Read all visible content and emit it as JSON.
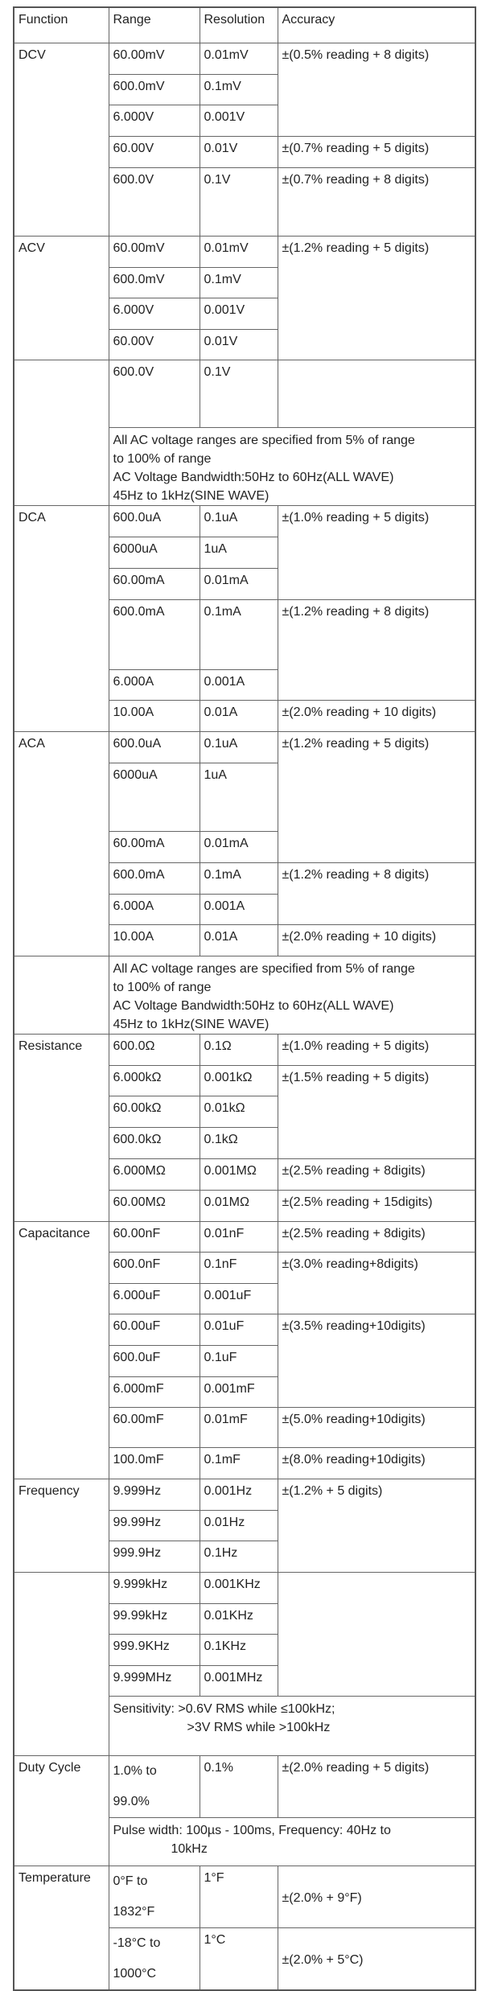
{
  "table": {
    "header": [
      "Function",
      "Range",
      "Resolution",
      "Accuracy"
    ],
    "rows": [
      [
        "DCV",
        "60.00mV",
        "0.01mV",
        "±(0.5% reading + 8 digits)"
      ],
      [
        "600.0mV",
        "0.1mV"
      ],
      [
        "6.000V",
        "0.001V"
      ],
      [
        "60.00V",
        "0.01V",
        "±(0.7% reading + 5 digits)"
      ],
      [
        "600.0V",
        "0.1V",
        "±(0.7% reading + 8 digits)"
      ],
      [
        "ACV",
        "60.00mV",
        "0.01mV",
        "±(1.2% reading + 5 digits)"
      ],
      [
        "600.0mV",
        "0.1mV"
      ],
      [
        "6.000V",
        "0.001V"
      ],
      [
        "60.00V",
        "0.01V"
      ],
      [
        "600.0V",
        "0.1V"
      ],
      [
        [
          "All AC voltage ranges are specified from 5% of range",
          "to 100% of range",
          "AC Voltage Bandwidth:50Hz to 60Hz(ALL WAVE)",
          "45Hz to 1kHz(SINE WAVE)"
        ]
      ],
      [
        "DCA",
        "600.0uA",
        "0.1uA",
        "±(1.0% reading + 5 digits)"
      ],
      [
        "6000uA",
        "1uA"
      ],
      [
        "60.00mA",
        "0.01mA"
      ],
      [
        "600.0mA",
        "0.1mA",
        "±(1.2% reading + 8 digits)"
      ],
      [
        "6.000A",
        "0.001A"
      ],
      [
        "10.00A",
        "0.01A",
        "±(2.0% reading + 10 digits)"
      ],
      [
        "ACA",
        "600.0uA",
        "0.1uA",
        "±(1.2% reading + 5 digits)"
      ],
      [
        "6000uA",
        "1uA"
      ],
      [
        "60.00mA",
        "0.01mA"
      ],
      [
        "600.0mA",
        "0.1mA",
        "±(1.2% reading + 8 digits)"
      ],
      [
        "6.000A",
        "0.001A"
      ],
      [
        "10.00A",
        "0.01A",
        "±(2.0% reading + 10 digits)"
      ],
      [
        [
          "All AC voltage ranges are specified from 5% of range",
          "to 100% of range",
          "AC Voltage Bandwidth:50Hz to 60Hz(ALL WAVE)",
          "45Hz to 1kHz(SINE WAVE)"
        ]
      ],
      [
        "Resistance",
        "600.0Ω",
        "0.1Ω",
        "±(1.0% reading + 5 digits)"
      ],
      [
        "6.000kΩ",
        "0.001kΩ",
        "±(1.5% reading + 5 digits)"
      ],
      [
        "60.00kΩ",
        "0.01kΩ"
      ],
      [
        "600.0kΩ",
        "0.1kΩ"
      ],
      [
        "6.000MΩ",
        "0.001MΩ",
        "±(2.5% reading + 8digits)"
      ],
      [
        "60.00MΩ",
        "0.01MΩ",
        "±(2.5% reading + 15digits)"
      ],
      [
        "Capacitance",
        "60.00nF",
        "0.01nF",
        "±(2.5% reading + 8digits)"
      ],
      [
        "600.0nF",
        "0.1nF",
        "±(3.0% reading+8digits)"
      ],
      [
        "6.000uF",
        "0.001uF"
      ],
      [
        "60.00uF",
        "0.01uF",
        "±(3.5% reading+10digits)"
      ],
      [
        "600.0uF",
        "0.1uF"
      ],
      [
        "6.000mF",
        "0.001mF"
      ],
      [
        "60.00mF",
        "0.01mF",
        "±(5.0% reading+10digits)"
      ],
      [
        "100.0mF",
        "0.1mF",
        "±(8.0% reading+10digits)"
      ],
      [
        "Frequency",
        "9.999Hz",
        "0.001Hz",
        "±(1.2% + 5 digits)"
      ],
      [
        "99.99Hz",
        "0.01Hz"
      ],
      [
        "999.9Hz",
        "0.1Hz"
      ],
      [
        "9.999kHz",
        "0.001KHz"
      ],
      [
        "99.99kHz",
        "0.01KHz"
      ],
      [
        "999.9KHz",
        "0.1KHz"
      ],
      [
        "9.999MHz",
        "0.001MHz"
      ],
      [
        [
          "Sensitivity: >0.6V RMS  while  ≤100kHz;",
          ">3V RMS  while  >100kHz"
        ]
      ],
      [
        "Duty Cycle",
        [
          "1.0% to",
          "99.0%"
        ],
        "0.1%",
        "±(2.0% reading + 5 digits)"
      ],
      [
        [
          "Pulse width: 100µs - 100ms, Frequency: 40Hz to",
          "10kHz"
        ]
      ],
      [
        "Temperature",
        [
          "0°F to",
          "1832°F"
        ],
        "1°F",
        "±(2.0% + 9°F)"
      ],
      [
        [
          "-18°C to",
          "1000°C"
        ],
        "1°C",
        "±(2.0% + 5°C)"
      ]
    ]
  }
}
